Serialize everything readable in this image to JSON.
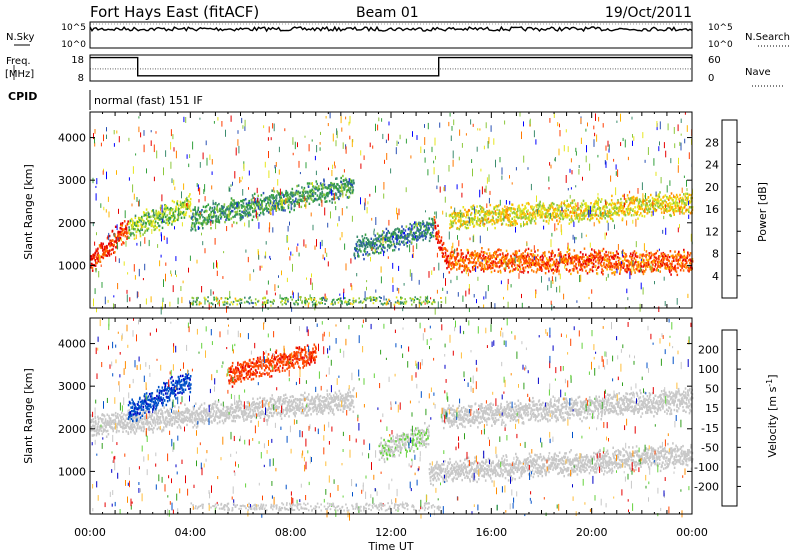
{
  "header": {
    "station": "Fort Hays East (fitACF)",
    "beam": "Beam 01",
    "date": "19/Oct/2011"
  },
  "chart_data": [
    {
      "type": "line",
      "panel": "noise",
      "left_label": "N.Sky",
      "right_label": "N.Search",
      "left_ticks": [
        "10^5",
        "10^0"
      ],
      "right_ticks": [
        "10^5",
        "10^0"
      ],
      "x_range_hours": [
        0,
        24
      ],
      "series": [
        {
          "name": "N.Sky",
          "style": "solid",
          "level": "10^5"
        },
        {
          "name": "N.Search",
          "style": "dotted",
          "level": "10^5"
        }
      ]
    },
    {
      "type": "line",
      "panel": "frequency",
      "left_label": "Freq.",
      "left_unit": "[MHz]",
      "left_ticks": [
        18,
        8
      ],
      "left_range": [
        8,
        18
      ],
      "right_label": "Nave",
      "right_ticks": [
        60,
        0
      ],
      "right_range": [
        0,
        60
      ],
      "freq_steps": [
        {
          "start_h": 0,
          "end_h": 1.9,
          "value": 17
        },
        {
          "start_h": 1.9,
          "end_h": 13.9,
          "value": 10
        },
        {
          "start_h": 13.9,
          "end_h": 24,
          "value": 17
        }
      ],
      "nave_level": 28
    },
    {
      "type": "table",
      "panel": "cpid",
      "label": "CPID",
      "text": "normal (fast) 151 IF"
    },
    {
      "type": "heatmap",
      "panel": "power",
      "ylabel": "Slant Range [km]",
      "yticks": [
        1000,
        2000,
        3000,
        4000
      ],
      "ylim": [
        0,
        4600
      ],
      "xlim_hours": [
        0,
        24
      ],
      "colorbar": {
        "label": "Power [dB]",
        "ticks": [
          28,
          24,
          20,
          16,
          12,
          8,
          4
        ],
        "range": [
          0,
          32
        ],
        "colors": [
          "#0000ff",
          "#2850b4",
          "#3c8c6e",
          "#32a03c",
          "#8cc83c",
          "#e6e61e",
          "#ffb400",
          "#ff7800",
          "#ff3c00",
          "#e60000"
        ]
      },
      "bands": [
        {
          "from_h": 0,
          "to_h": 1.5,
          "from_km": 1100,
          "to_km": 1900,
          "power_db": 28
        },
        {
          "from_h": 1.5,
          "to_h": 4,
          "from_km": 1900,
          "to_km": 2400,
          "power_db": 14
        },
        {
          "from_h": 4,
          "to_h": 10.5,
          "from_km": 2100,
          "to_km": 2900,
          "power_db": 10
        },
        {
          "from_h": 10.5,
          "to_h": 13.7,
          "from_km": 1400,
          "to_km": 1900,
          "power_db": 8
        },
        {
          "from_h": 13.7,
          "to_h": 14.3,
          "from_km": 1900,
          "to_km": 1000,
          "power_db": 28
        },
        {
          "from_h": 14.3,
          "to_h": 24,
          "from_km": 1150,
          "to_km": 1100,
          "power_db": 26
        },
        {
          "from_h": 14.3,
          "to_h": 24,
          "from_km": 2100,
          "to_km": 2500,
          "power_db": 18
        }
      ]
    },
    {
      "type": "heatmap",
      "panel": "velocity",
      "ylabel": "Slant Range [km]",
      "yticks": [
        1000,
        2000,
        3000,
        4000
      ],
      "ylim": [
        0,
        4600
      ],
      "xlim_hours": [
        0,
        24
      ],
      "xticks": [
        "00:00",
        "04:00",
        "08:00",
        "12:00",
        "16:00",
        "20:00",
        "00:00"
      ],
      "xlabel": "Time UT",
      "colorbar": {
        "label": "Velocity [m s",
        "label_sup": "-1",
        "label_end": "]",
        "ticks": [
          "200",
          "100",
          "50",
          "15",
          "-15",
          "-50",
          "-100",
          "-200"
        ],
        "range": [
          -250,
          250
        ],
        "colors": [
          "#e60000",
          "#ff4600",
          "#ff8c00",
          "#ffbe3c",
          "#c8c8c8",
          "#c8c8c8",
          "#64d23c",
          "#32a01e",
          "#0050c8",
          "#0000c8"
        ]
      },
      "bands": [
        {
          "from_h": 0,
          "to_h": 10.5,
          "from_km": 2100,
          "to_km": 2700,
          "velocity": 0
        },
        {
          "from_h": 11.5,
          "to_h": 13.5,
          "from_km": 1500,
          "to_km": 1900,
          "velocity": 40
        },
        {
          "from_h": 13.5,
          "to_h": 24,
          "from_km": 1000,
          "to_km": 1400,
          "velocity": 0
        },
        {
          "from_h": 14,
          "to_h": 24,
          "from_km": 2300,
          "to_km": 2700,
          "velocity": -20
        },
        {
          "from_h": 1.5,
          "to_h": 4,
          "from_km": 2400,
          "to_km": 3200,
          "velocity": 180
        },
        {
          "from_h": 5.5,
          "to_h": 9,
          "from_km": 3300,
          "to_km": 3800,
          "velocity": -180
        }
      ]
    }
  ]
}
